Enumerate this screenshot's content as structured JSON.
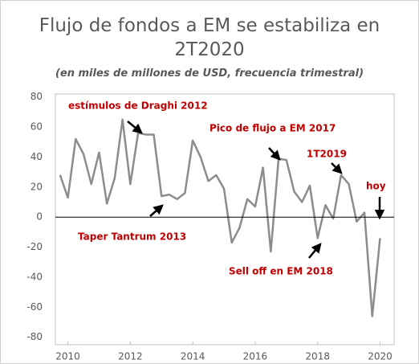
{
  "chart_data": {
    "type": "line",
    "title": "Flujo de fondos a EM se estabiliza en 2T2020",
    "subtitle": "(en miles de millones de USD, frecuencia trimestral)",
    "x": [
      2009.75,
      2010,
      2010.25,
      2010.5,
      2010.75,
      2011,
      2011.25,
      2011.5,
      2011.75,
      2012,
      2012.25,
      2012.5,
      2012.75,
      2013,
      2013.25,
      2013.5,
      2013.75,
      2014,
      2014.25,
      2014.5,
      2014.75,
      2015,
      2015.25,
      2015.5,
      2015.75,
      2016,
      2016.25,
      2016.5,
      2016.75,
      2017,
      2017.25,
      2017.5,
      2017.75,
      2018,
      2018.25,
      2018.5,
      2018.75,
      2019,
      2019.25,
      2019.5,
      2019.75,
      2020
    ],
    "series": [
      {
        "name": "Flujo de fondos a EM",
        "color": "#8c8c8c",
        "values": [
          28,
          13,
          52,
          42,
          22,
          43,
          9,
          26,
          65,
          22,
          56,
          55,
          55,
          14,
          15,
          12,
          16,
          51,
          40,
          24,
          28,
          19,
          -17,
          -7,
          12,
          7,
          33,
          -23,
          39,
          38,
          17,
          10,
          21,
          -14,
          8,
          -1,
          28,
          22,
          -3,
          3,
          -66,
          -14
        ]
      }
    ],
    "xlim": [
      2009.6,
      2020.45
    ],
    "xticks": [
      2010,
      2012,
      2014,
      2016,
      2018,
      2020
    ],
    "ylim": [
      -85,
      82
    ],
    "yticks": [
      -80,
      -60,
      -40,
      -20,
      0,
      20,
      40,
      60,
      80
    ],
    "grid": false,
    "annotations": [
      "estímulos de Draghi 2012",
      "Taper Tantrum 2013",
      "Pico de flujo a EM 2017",
      "1T2019",
      "hoy",
      "Sell off en EM 2018"
    ]
  }
}
